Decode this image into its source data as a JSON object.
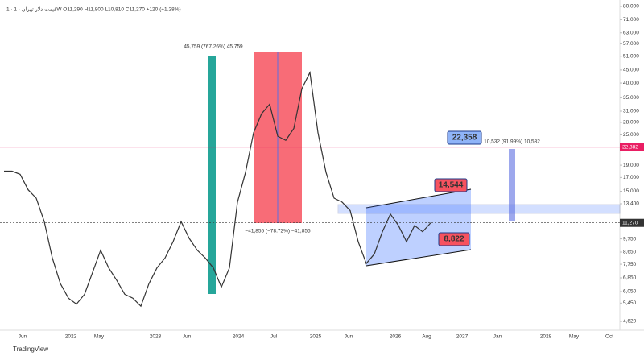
{
  "header": "1 · قیمت دلار تهران · 1W  O11,290 H11,800 L10,810 C11,270 +120 (+1.28%)",
  "brand": "TradingView",
  "chart_data": {
    "type": "line",
    "log_scale": true,
    "color": "#333333",
    "values": [
      18000,
      18000,
      17500,
      15200,
      14100,
      11400,
      8200,
      6500,
      5700,
      5400,
      5900,
      7200,
      8800,
      7500,
      6700,
      5900,
      5700,
      5300,
      6500,
      7500,
      8200,
      9500,
      11400,
      9800,
      8800,
      8200,
      7500,
      6300,
      7500,
      13600,
      17800,
      25500,
      30300,
      33000,
      24700,
      23800,
      26500,
      38000,
      44000,
      25500,
      17800,
      14100,
      13600,
      12600,
      9500,
      7800,
      8500,
      10400,
      12200,
      11000,
      9500,
      11000,
      10400,
      11270
    ],
    "ylim": [
      4620,
      80000
    ],
    "yticks": [
      {
        "value": 80000,
        "label": "80,000"
      },
      {
        "value": 71000,
        "label": "71,000"
      },
      {
        "value": 63000,
        "label": "63,000"
      },
      {
        "value": 57000,
        "label": "57,000"
      },
      {
        "value": 51000,
        "label": "51,000"
      },
      {
        "value": 45000,
        "label": "45,000"
      },
      {
        "value": 40000,
        "label": "40,000"
      },
      {
        "value": 35000,
        "label": "35,000"
      },
      {
        "value": 31000,
        "label": "31,000"
      },
      {
        "value": 28000,
        "label": "28,000"
      },
      {
        "value": 25000,
        "label": "25,000"
      },
      {
        "value": 19000,
        "label": "19,000"
      },
      {
        "value": 17000,
        "label": "17,000"
      },
      {
        "value": 15000,
        "label": "15,000"
      },
      {
        "value": 13400,
        "label": "13,400"
      },
      {
        "value": 9750,
        "label": "9,750"
      },
      {
        "value": 8650,
        "label": "8,650"
      },
      {
        "value": 7750,
        "label": "7,750"
      },
      {
        "value": 6850,
        "label": "6,850"
      },
      {
        "value": 6050,
        "label": "6,050"
      },
      {
        "value": 5450,
        "label": "5,450"
      },
      {
        "value": 4620,
        "label": "4,620"
      }
    ],
    "price_lines": [
      {
        "value": 22382,
        "label": "22,382",
        "color": "#e91e63"
      },
      {
        "value": 11270,
        "label": "11,270",
        "color": "#333333"
      }
    ],
    "x_labels": [
      "Jun",
      "2022",
      "May",
      "2023",
      "Jun",
      "2024",
      "Jul",
      "2025",
      "Jun",
      "2026",
      "Aug",
      "2027",
      "Jan",
      "2028",
      "May",
      "Oct"
    ],
    "annotations": {
      "rise": "45,759 (767.26%) 45,759",
      "fall": "−41,855 (−78.72%) −41,855",
      "target_move": "10,532 (91.99%) 10,532",
      "target": "22,358",
      "channel_top": "14,544",
      "channel_bottom": "8,822"
    }
  }
}
